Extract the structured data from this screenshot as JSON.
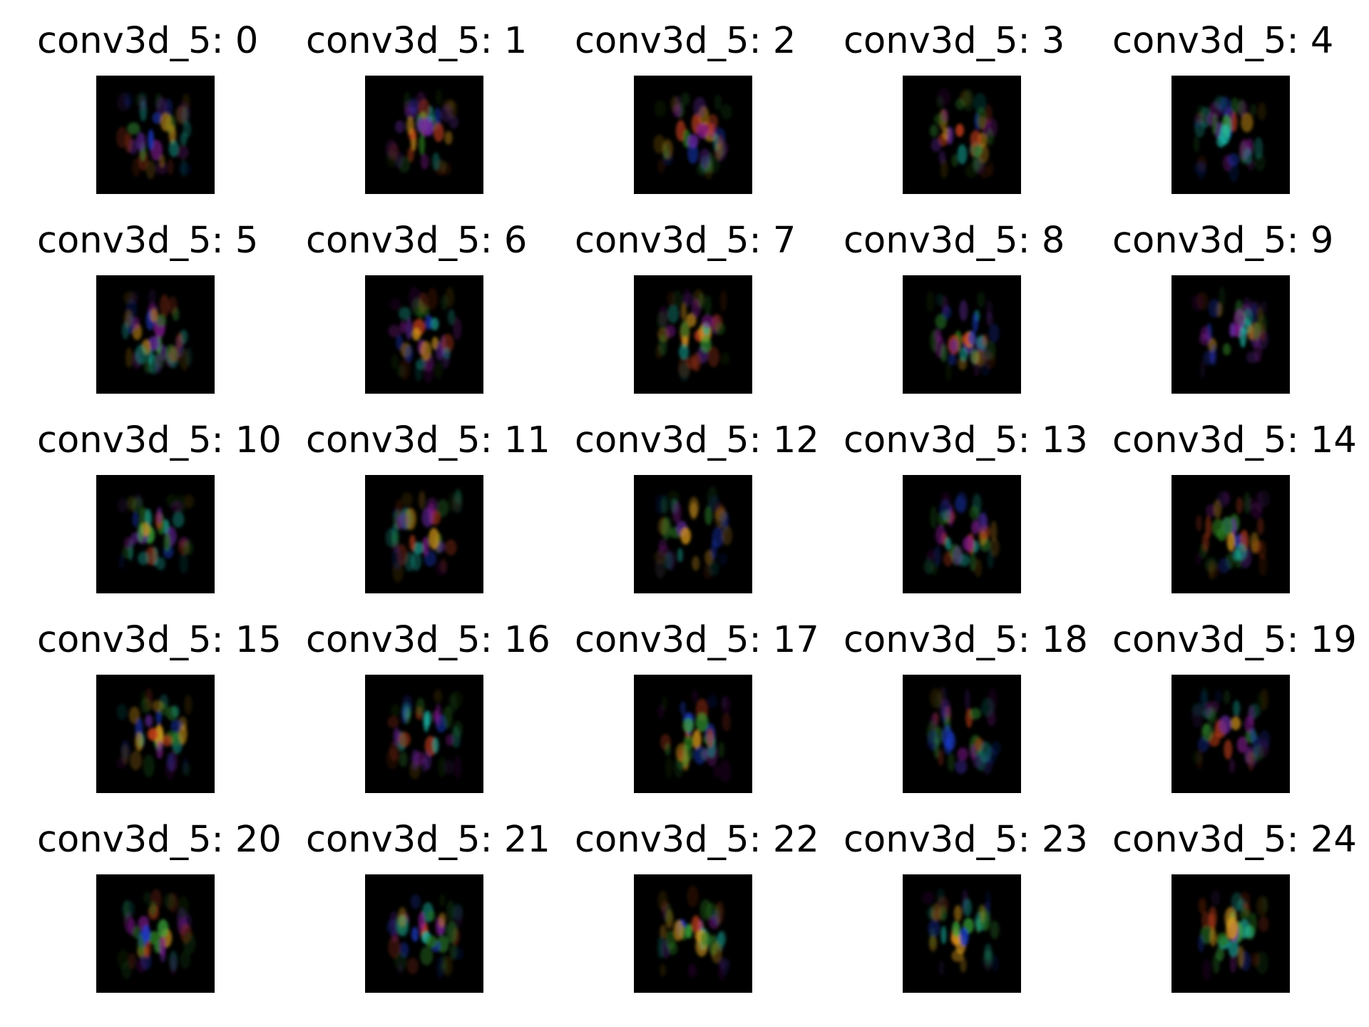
{
  "figure": {
    "layer_name": "conv3d_5",
    "filters": [
      {
        "index": 0,
        "title": "conv3d_5: 0"
      },
      {
        "index": 1,
        "title": "conv3d_5: 1"
      },
      {
        "index": 2,
        "title": "conv3d_5: 2"
      },
      {
        "index": 3,
        "title": "conv3d_5: 3"
      },
      {
        "index": 4,
        "title": "conv3d_5: 4"
      },
      {
        "index": 5,
        "title": "conv3d_5: 5"
      },
      {
        "index": 6,
        "title": "conv3d_5: 6"
      },
      {
        "index": 7,
        "title": "conv3d_5: 7"
      },
      {
        "index": 8,
        "title": "conv3d_5: 8"
      },
      {
        "index": 9,
        "title": "conv3d_5: 9"
      },
      {
        "index": 10,
        "title": "conv3d_5: 10"
      },
      {
        "index": 11,
        "title": "conv3d_5: 11"
      },
      {
        "index": 12,
        "title": "conv3d_5: 12"
      },
      {
        "index": 13,
        "title": "conv3d_5: 13"
      },
      {
        "index": 14,
        "title": "conv3d_5: 14"
      },
      {
        "index": 15,
        "title": "conv3d_5: 15"
      },
      {
        "index": 16,
        "title": "conv3d_5: 16"
      },
      {
        "index": 17,
        "title": "conv3d_5: 17"
      },
      {
        "index": 18,
        "title": "conv3d_5: 18"
      },
      {
        "index": 19,
        "title": "conv3d_5: 19"
      },
      {
        "index": 20,
        "title": "conv3d_5: 20"
      },
      {
        "index": 21,
        "title": "conv3d_5: 21"
      },
      {
        "index": 22,
        "title": "conv3d_5: 22"
      },
      {
        "index": 23,
        "title": "conv3d_5: 23"
      },
      {
        "index": 24,
        "title": "conv3d_5: 24"
      }
    ],
    "colors": {
      "background": "#ffffff",
      "image_background": "#000000",
      "blob_palette": [
        "#2a7a1e",
        "#8a1a9a",
        "#c8401a",
        "#1a3ac8",
        "#3aa83a",
        "#d89a1a",
        "#6a2aa8",
        "#1ab8a8"
      ]
    }
  }
}
